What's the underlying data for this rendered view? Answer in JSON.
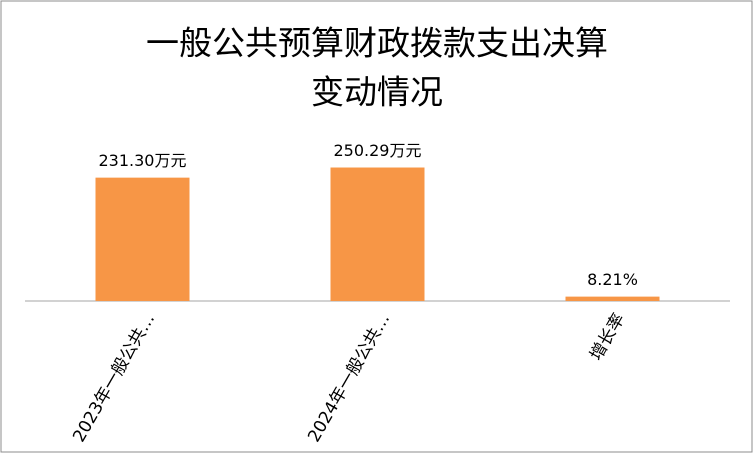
{
  "chart_data": {
    "type": "bar",
    "title": [
      "一般公共预算财政拨款支出决算",
      "变动情况"
    ],
    "categories": [
      "2023年一般公共…",
      "2024年一般公共…",
      "增长率"
    ],
    "values": [
      231.3,
      250.29,
      8.21
    ],
    "value_labels": [
      "231.30万元",
      "250.29万元",
      "8.21%"
    ],
    "color": "#f79646",
    "ylim": [
      0,
      300
    ]
  }
}
